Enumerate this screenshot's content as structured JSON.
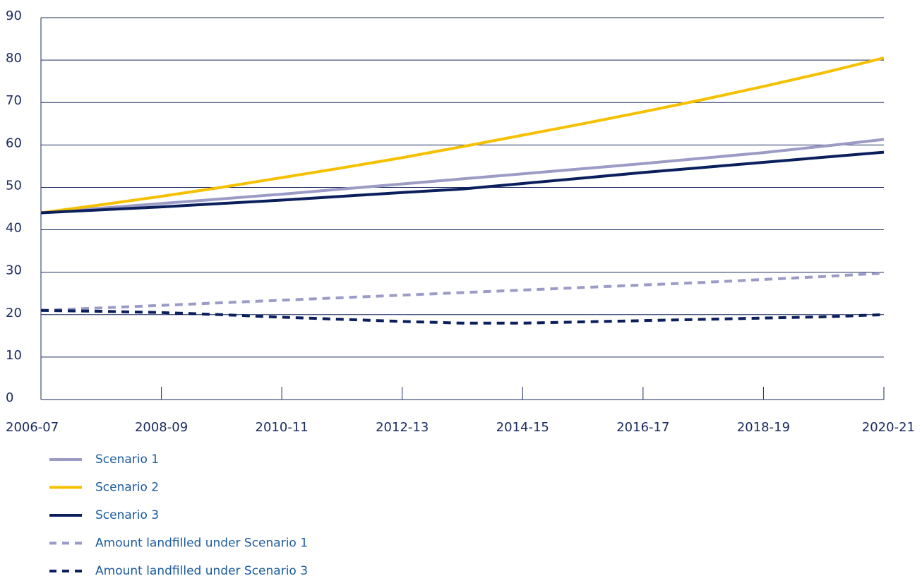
{
  "chart_data": {
    "type": "line",
    "categories": [
      "2006-07",
      null,
      "2008-09",
      null,
      "2010-11",
      null,
      "2012-13",
      null,
      "2014-15",
      null,
      "2016-17",
      null,
      "2018-19",
      null,
      "2020-21"
    ],
    "ylim": [
      0,
      90
    ],
    "yticks": [
      0,
      10,
      20,
      30,
      40,
      50,
      60,
      70,
      80,
      90
    ],
    "grid": true,
    "series": [
      {
        "name": "Scenario 1",
        "color": "#9b9bc6",
        "dashed": false,
        "values": [
          44,
          45.1,
          46.2,
          47.3,
          48.4,
          49.6,
          50.8,
          52.0,
          53.2,
          54.4,
          55.6,
          56.9,
          58.2,
          59.7,
          61.3
        ]
      },
      {
        "name": "Scenario 2",
        "color": "#f5c000",
        "dashed": false,
        "values": [
          44,
          45.9,
          47.9,
          50.0,
          52.3,
          54.6,
          57.0,
          59.6,
          62.3,
          65.0,
          67.8,
          70.7,
          73.8,
          77.0,
          80.5
        ]
      },
      {
        "name": "Scenario 3",
        "color": "#0a1f5c",
        "dashed": false,
        "values": [
          44,
          44.7,
          45.4,
          46.2,
          47.0,
          47.9,
          48.8,
          49.6,
          50.9,
          52.2,
          53.5,
          54.7,
          55.9,
          57.1,
          58.3
        ]
      },
      {
        "name": "Amount landfilled under Scenario 1",
        "color": "#9b9bc6",
        "dashed": true,
        "values": [
          21,
          21.6,
          22.2,
          22.8,
          23.4,
          24.0,
          24.6,
          25.2,
          25.8,
          26.4,
          27.0,
          27.6,
          28.3,
          29.0,
          29.8
        ]
      },
      {
        "name": "Amount landfilled under Scenario 3",
        "color": "#0a1f5c",
        "dashed": true,
        "values": [
          21,
          20.8,
          20.5,
          20.0,
          19.4,
          18.9,
          18.4,
          18.0,
          18.0,
          18.3,
          18.6,
          18.9,
          19.2,
          19.5,
          20.0
        ]
      }
    ]
  }
}
